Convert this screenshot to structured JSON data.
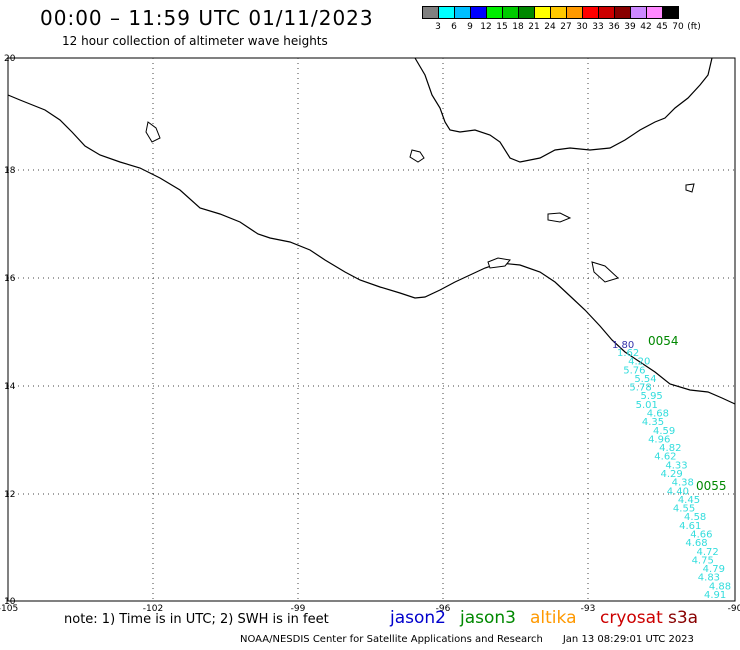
{
  "header": {
    "title": "00:00 – 11:59 UTC 01/11/2023",
    "subtitle": "12 hour collection of altimeter wave heights"
  },
  "legend": {
    "colors": [
      "#808080",
      "#00ffff",
      "#00bfff",
      "#0000ff",
      "#00ee00",
      "#00cc00",
      "#008800",
      "#ffff00",
      "#ffc800",
      "#ff9900",
      "#ff0000",
      "#cc0000",
      "#880000",
      "#cc88ff",
      "#ff88ff",
      "#000000"
    ],
    "labels": [
      "3",
      "6",
      "9",
      "12",
      "15",
      "18",
      "21",
      "24",
      "27",
      "30",
      "33",
      "36",
      "39",
      "42",
      "45",
      "70",
      "(ft)"
    ]
  },
  "axes": {
    "y_ticks": [
      "20",
      "18",
      "16",
      "14",
      "12",
      "10"
    ],
    "x_ticks": [
      "-105",
      "-102",
      "-99",
      "-96",
      "-93",
      "-90"
    ]
  },
  "track_labels": {
    "jason3_pass_a": "0054",
    "jason3_pass_b": "0055",
    "jason2_value": "1.80",
    "swh_values": [
      "1.62",
      "4.20",
      "5.76",
      "5.54",
      "5.78",
      "5.95",
      "5.01",
      "4.68",
      "4.35",
      "4.59",
      "4.96",
      "4.82",
      "4.62",
      "4.33",
      "4.29",
      "4.38",
      "4.40",
      "4.45",
      "4.55",
      "4.58",
      "4.61",
      "4.66",
      "4.68",
      "4.72",
      "4.75",
      "4.79",
      "4.83",
      "4.88",
      "4.91"
    ]
  },
  "footer": {
    "note": "note: 1) Time is in UTC; 2) SWH is in feet",
    "satellites": [
      {
        "name": "jason2",
        "color": "#0000cc"
      },
      {
        "name": "jason3",
        "color": "#008800"
      },
      {
        "name": "altika",
        "color": "#ff9900"
      },
      {
        "name": "cryosat",
        "color": "#cc0000"
      },
      {
        "name": "s3a",
        "color": "#880000"
      }
    ],
    "credit": "NOAA/NESDIS Center for Satellite Applications and Research",
    "timestamp": "Jan 13 08:29:01 UTC 2023"
  }
}
